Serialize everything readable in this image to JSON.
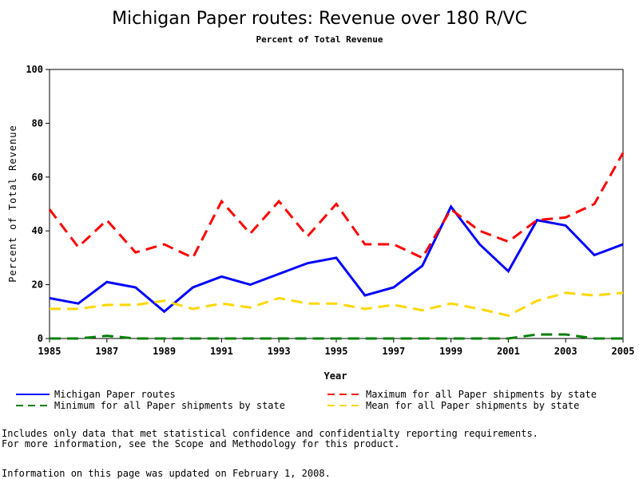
{
  "chart_data": {
    "type": "line",
    "title": "Michigan Paper routes: Revenue over 180 R/VC",
    "subtitle": "Percent of Total Revenue",
    "x_label": "Year",
    "y_label": "Percent of Total Revenue",
    "x": [
      1985,
      1986,
      1987,
      1988,
      1989,
      1990,
      1991,
      1992,
      1993,
      1994,
      1995,
      1996,
      1997,
      1998,
      1999,
      2000,
      2001,
      2002,
      2003,
      2004,
      2005
    ],
    "xlim": [
      1985,
      2005
    ],
    "xticks": [
      1985,
      1987,
      1989,
      1991,
      1993,
      1995,
      1997,
      1999,
      2001,
      2003,
      2005
    ],
    "ylim": [
      0,
      100
    ],
    "yticks": [
      0,
      20,
      40,
      60,
      80,
      100
    ],
    "series": [
      {
        "name": "Michigan Paper routes",
        "color": "#0000ff",
        "dash": "solid",
        "values": [
          15,
          13,
          21,
          19,
          10,
          19,
          23,
          20,
          24,
          28,
          30,
          16,
          19,
          27,
          49,
          35,
          25,
          44,
          42,
          31,
          35
        ]
      },
      {
        "name": "Maximum for all Paper shipments by state",
        "color": "#ff0000",
        "dash": "dashed",
        "values": [
          48,
          34,
          44,
          32,
          35,
          30,
          51,
          39,
          51,
          38,
          50,
          35,
          35,
          30,
          48,
          40,
          36,
          44,
          45,
          50,
          69
        ]
      },
      {
        "name": "Minimum for all Paper shipments by state",
        "color": "#008000",
        "dash": "dashed",
        "values": [
          0,
          0,
          1,
          0,
          0,
          0,
          0,
          0,
          0,
          0,
          0,
          0,
          0,
          0,
          0,
          0,
          0,
          1.5,
          1.5,
          0,
          0
        ]
      },
      {
        "name": "Mean for all Paper shipments by state",
        "color": "#ffd700",
        "dash": "dashed",
        "values": [
          11,
          11,
          12.5,
          12.5,
          14,
          11,
          13,
          11.5,
          15,
          13,
          13,
          11,
          12.5,
          10.5,
          13,
          11,
          8.5,
          14,
          17,
          16,
          17
        ]
      }
    ]
  },
  "notes": [
    "Includes only data that met statistical confidence and confidentialty reporting requirements.",
    "For more information, see the Scope and Methodology for this product.",
    "Information on this page was updated on February 1, 2008."
  ]
}
